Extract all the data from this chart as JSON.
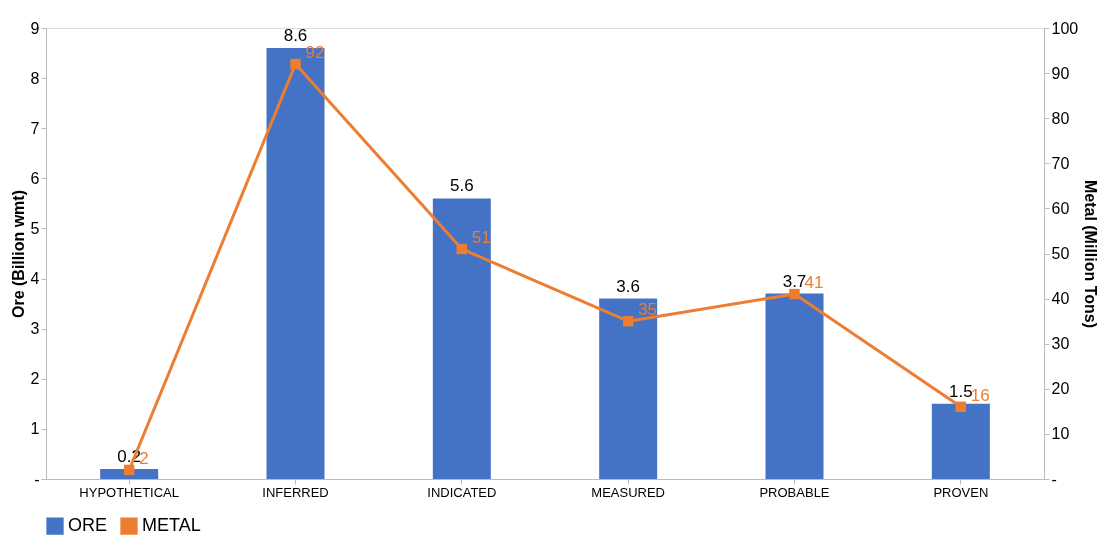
{
  "chart_data": {
    "type": "bar",
    "xlabel": null,
    "ylabel": "Ore (Billion wmt)",
    "y2label": "Metal (Million Tons)",
    "categories": [
      "HYPOTHETICAL",
      "INFERRED",
      "INDICATED",
      "MEASURED",
      "PROBABLE",
      "PROVEN"
    ],
    "series": [
      {
        "name": "ORE",
        "color": "#4472c4",
        "values": [
          0.2,
          8.6,
          5.6,
          3.6,
          3.7,
          1.5
        ]
      },
      {
        "name": "METAL",
        "type": "line",
        "axis": "y2",
        "color": "#ed7d31",
        "marker": "square",
        "values": [
          2,
          92,
          51,
          35,
          41,
          16
        ]
      }
    ],
    "ylim": [
      0,
      9
    ],
    "yticks": [
      {
        "value": 0,
        "label": "-"
      },
      1,
      2,
      3,
      4,
      5,
      6,
      7,
      8,
      9
    ],
    "y2lim": [
      0,
      100
    ],
    "y2ticks": [
      {
        "value": 0,
        "label": "-"
      },
      10,
      20,
      30,
      40,
      50,
      60,
      70,
      80,
      90,
      100
    ],
    "data_labels": true,
    "legend": "bottom",
    "grid": false
  }
}
